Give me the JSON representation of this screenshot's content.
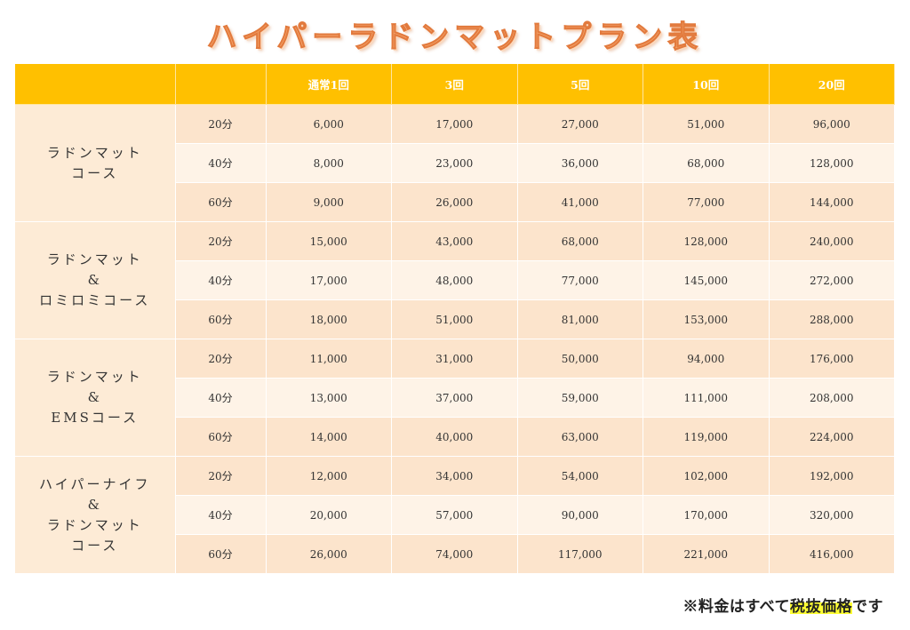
{
  "title": "ハイパーラドンマットプラン表",
  "table": {
    "headers": [
      "",
      "",
      "通常1回",
      "3回",
      "5回",
      "10回",
      "20回"
    ],
    "groups": [
      {
        "course_lines": [
          "ラドンマット",
          "コース"
        ],
        "rows": [
          {
            "minutes": "20分",
            "prices": [
              "6,000",
              "17,000",
              "27,000",
              "51,000",
              "96,000"
            ]
          },
          {
            "minutes": "40分",
            "prices": [
              "8,000",
              "23,000",
              "36,000",
              "68,000",
              "128,000"
            ]
          },
          {
            "minutes": "60分",
            "prices": [
              "9,000",
              "26,000",
              "41,000",
              "77,000",
              "144,000"
            ]
          }
        ]
      },
      {
        "course_lines": [
          "ラドンマット",
          "&",
          "ロミロミコース"
        ],
        "rows": [
          {
            "minutes": "20分",
            "prices": [
              "15,000",
              "43,000",
              "68,000",
              "128,000",
              "240,000"
            ]
          },
          {
            "minutes": "40分",
            "prices": [
              "17,000",
              "48,000",
              "77,000",
              "145,000",
              "272,000"
            ]
          },
          {
            "minutes": "60分",
            "prices": [
              "18,000",
              "51,000",
              "81,000",
              "153,000",
              "288,000"
            ]
          }
        ]
      },
      {
        "course_lines": [
          "ラドンマット",
          "&",
          "EMSコース"
        ],
        "rows": [
          {
            "minutes": "20分",
            "prices": [
              "11,000",
              "31,000",
              "50,000",
              "94,000",
              "176,000"
            ]
          },
          {
            "minutes": "40分",
            "prices": [
              "13,000",
              "37,000",
              "59,000",
              "111,000",
              "208,000"
            ]
          },
          {
            "minutes": "60分",
            "prices": [
              "14,000",
              "40,000",
              "63,000",
              "119,000",
              "224,000"
            ]
          }
        ]
      },
      {
        "course_lines": [
          "ハイパーナイフ",
          "&",
          "ラドンマット",
          "コース"
        ],
        "rows": [
          {
            "minutes": "20分",
            "prices": [
              "12,000",
              "34,000",
              "54,000",
              "102,000",
              "192,000"
            ]
          },
          {
            "minutes": "40分",
            "prices": [
              "20,000",
              "57,000",
              "90,000",
              "170,000",
              "320,000"
            ]
          },
          {
            "minutes": "60分",
            "prices": [
              "26,000",
              "74,000",
              "117,000",
              "221,000",
              "416,000"
            ]
          }
        ]
      }
    ]
  },
  "note": {
    "prefix": "※料金はすべて",
    "highlight": "税抜価格",
    "suffix": "です"
  },
  "colors": {
    "header_bg": "#ffc000",
    "row_shade": "#fce4cc",
    "row_light": "#fef3e7",
    "title": "#f4a36a",
    "highlight": "#ffff33"
  }
}
